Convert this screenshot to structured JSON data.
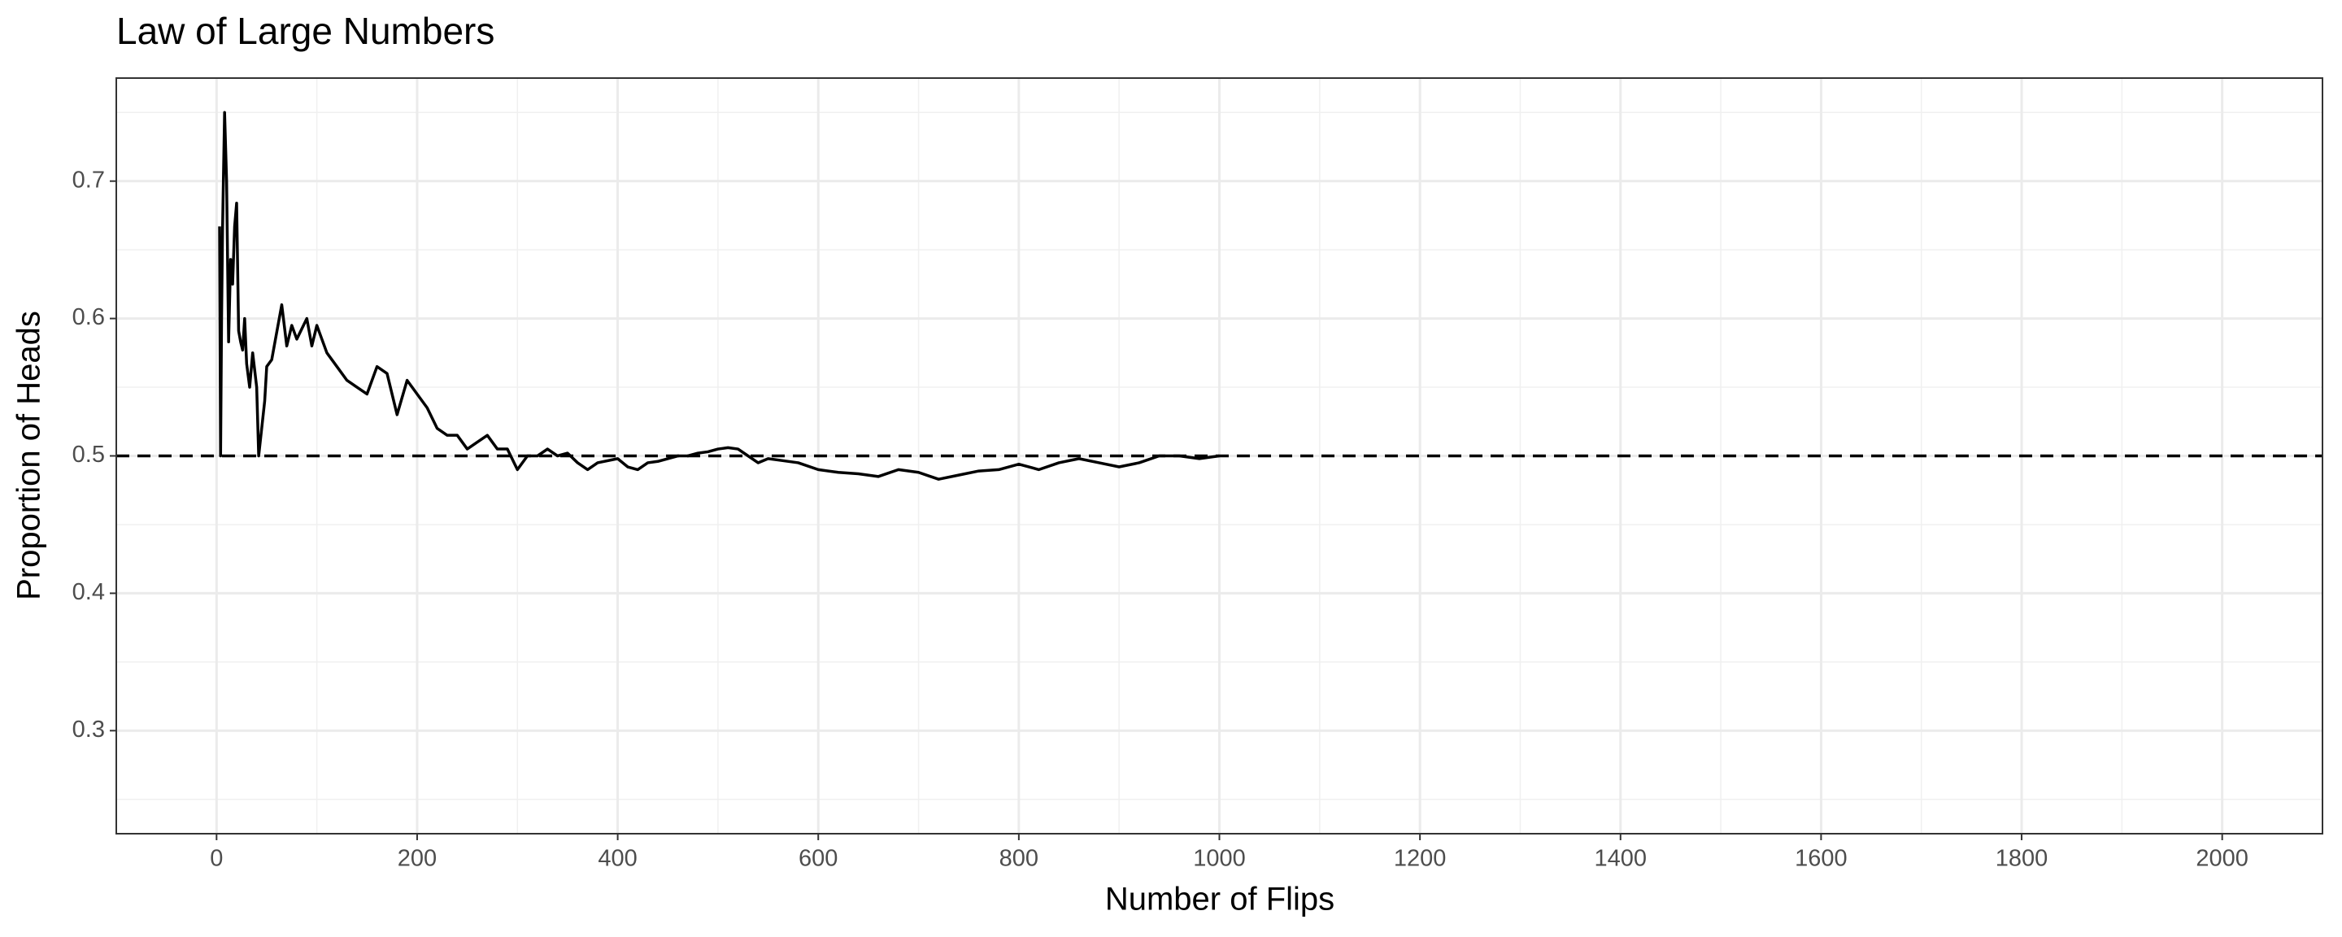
{
  "chart_data": {
    "type": "line",
    "title": "Law of Large Numbers",
    "x_label": "Number of Flips",
    "y_label": "Proportion of Heads",
    "x": [
      3,
      4,
      5,
      6,
      8,
      10,
      12,
      14,
      16,
      18,
      20,
      22,
      24,
      26,
      28,
      30,
      33,
      36,
      40,
      42,
      45,
      48,
      50,
      55,
      60,
      65,
      70,
      75,
      80,
      90,
      95,
      100,
      110,
      120,
      130,
      140,
      150,
      160,
      170,
      180,
      190,
      200,
      210,
      220,
      230,
      240,
      250,
      260,
      270,
      280,
      290,
      300,
      310,
      320,
      330,
      340,
      350,
      360,
      370,
      380,
      400,
      410,
      420,
      430,
      440,
      450,
      460,
      470,
      480,
      490,
      500,
      510,
      520,
      530,
      540,
      550,
      560,
      580,
      600,
      620,
      640,
      660,
      680,
      700,
      720,
      740,
      760,
      780,
      800,
      820,
      840,
      860,
      880,
      900,
      920,
      940,
      960,
      980,
      1000
    ],
    "values": [
      0.667,
      0.5,
      0.6,
      0.667,
      0.75,
      0.7,
      0.583,
      0.643,
      0.625,
      0.667,
      0.684,
      0.591,
      0.583,
      0.577,
      0.6,
      0.567,
      0.55,
      0.575,
      0.55,
      0.5,
      0.52,
      0.54,
      0.565,
      0.57,
      0.59,
      0.61,
      0.58,
      0.595,
      0.585,
      0.6,
      0.58,
      0.595,
      0.575,
      0.565,
      0.555,
      0.55,
      0.545,
      0.565,
      0.56,
      0.53,
      0.555,
      0.545,
      0.535,
      0.52,
      0.515,
      0.515,
      0.505,
      0.51,
      0.515,
      0.505,
      0.505,
      0.49,
      0.5,
      0.5,
      0.505,
      0.5,
      0.502,
      0.495,
      0.49,
      0.495,
      0.498,
      0.492,
      0.49,
      0.495,
      0.496,
      0.498,
      0.5,
      0.5,
      0.502,
      0.503,
      0.505,
      0.506,
      0.505,
      0.5,
      0.495,
      0.498,
      0.497,
      0.495,
      0.49,
      0.488,
      0.487,
      0.485,
      0.49,
      0.488,
      0.483,
      0.486,
      0.489,
      0.49,
      0.494,
      0.49,
      0.495,
      0.498,
      0.495,
      0.492,
      0.495,
      0.5,
      0.5,
      0.498,
      0.5
    ],
    "color": "#000000",
    "reference_line": 0.5,
    "xlim": [
      -100,
      2100
    ],
    "xticks": [
      0,
      200,
      400,
      600,
      800,
      1000,
      1200,
      1400,
      1600,
      1800,
      2000
    ],
    "xminor": [
      100,
      300,
      500,
      700,
      900,
      1100,
      1300,
      1500,
      1700,
      1900
    ],
    "ylim": [
      0.225,
      0.775
    ],
    "yticks": [
      0.3,
      0.4,
      0.5,
      0.6,
      0.7
    ],
    "yminor": [
      0.25,
      0.35,
      0.45,
      0.55,
      0.65,
      0.75
    ],
    "grid": true
  }
}
